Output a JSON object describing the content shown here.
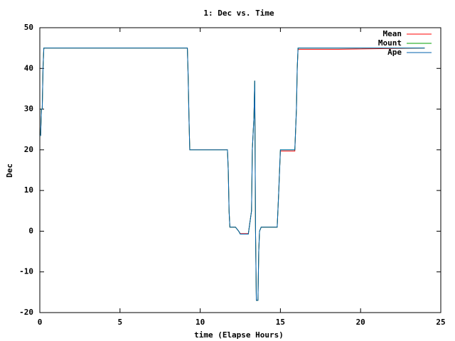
{
  "chart_data": {
    "type": "line",
    "title": "1: Dec vs. Time",
    "x_label": "time (Elapse Hours)",
    "y_label": "Dec",
    "x": [
      0,
      0.05,
      0.1,
      0.15,
      0.2,
      0.25,
      9.2,
      9.25,
      9.3,
      9.35,
      11.7,
      11.75,
      11.8,
      11.85,
      12.2,
      12.4,
      12.5,
      13.0,
      13.2,
      13.25,
      13.35,
      13.4,
      13.45,
      13.5,
      13.6,
      13.65,
      13.7,
      13.8,
      14.8,
      14.9,
      14.95,
      15.0,
      15.9,
      16.0,
      16.05,
      16.1,
      18.6,
      24
    ],
    "series": [
      {
        "name": "Mean",
        "color": "#ff0000",
        "values": [
          23.5,
          23.5,
          30,
          30,
          40,
          45,
          45,
          38,
          28,
          20,
          20,
          15,
          5,
          1,
          1,
          0,
          -0.6,
          -0.6,
          5,
          20,
          28,
          37,
          0,
          -17,
          -17,
          -5,
          0,
          1,
          1,
          10,
          15,
          19.7,
          19.7,
          30,
          40,
          44.7,
          44.7,
          45
        ]
      },
      {
        "name": "Mount",
        "color": "#00a000",
        "values": [
          23.5,
          23.5,
          30,
          30,
          40,
          45,
          45,
          38,
          28,
          20,
          20,
          15,
          5,
          1,
          1,
          0,
          -0.7,
          -0.7,
          5,
          20,
          28,
          37,
          0,
          -17,
          -17,
          -5,
          0,
          1,
          1,
          10,
          15,
          20,
          20,
          30,
          40,
          45,
          45,
          45
        ]
      },
      {
        "name": "Ape",
        "color": "#0060ad",
        "values": [
          23.5,
          23.5,
          30,
          30,
          40,
          45,
          45,
          38,
          28,
          20,
          20,
          15,
          5,
          1,
          1,
          0,
          -0.7,
          -0.7,
          5,
          20,
          28,
          37,
          0,
          -17,
          -17,
          -5,
          0,
          1,
          1,
          10,
          15,
          20,
          20,
          30,
          40,
          45,
          45,
          45
        ]
      }
    ],
    "xlim": [
      0,
      25
    ],
    "xticks": [
      0,
      5,
      10,
      15,
      20,
      25
    ],
    "ylim": [
      -20,
      50
    ],
    "yticks": [
      -20,
      -10,
      0,
      10,
      20,
      30,
      40,
      50
    ],
    "legend": "top-right"
  }
}
